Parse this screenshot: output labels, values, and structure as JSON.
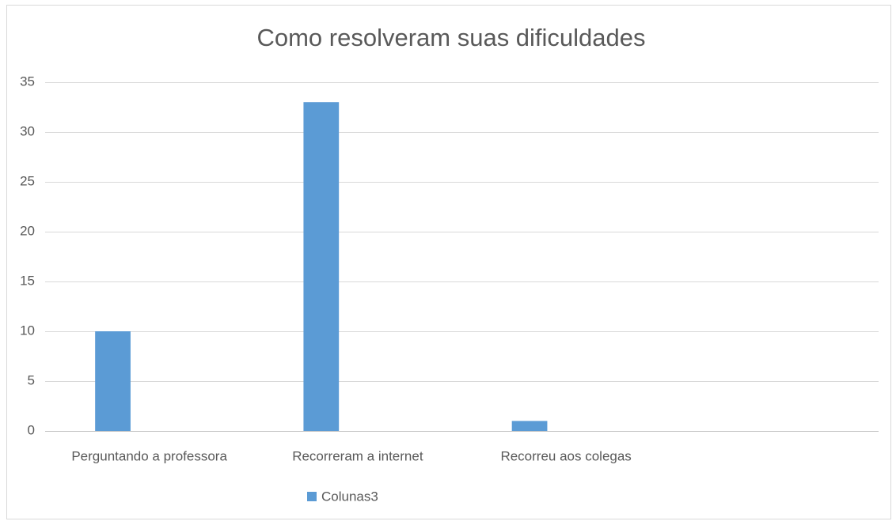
{
  "chart_data": {
    "type": "bar",
    "title": "Como resolveram suas dificuldades",
    "categories": [
      "Perguntando a professora",
      "Recorreram a internet",
      "Recorreu aos colegas",
      null
    ],
    "series": [
      {
        "name": "Colunas3",
        "color": "#5b9bd5",
        "values": [
          10,
          33,
          1,
          null
        ]
      }
    ],
    "ylim": [
      0,
      35
    ],
    "yticks": [
      0,
      5,
      10,
      15,
      20,
      25,
      30,
      35
    ],
    "grid": true,
    "legend": "bottom"
  }
}
